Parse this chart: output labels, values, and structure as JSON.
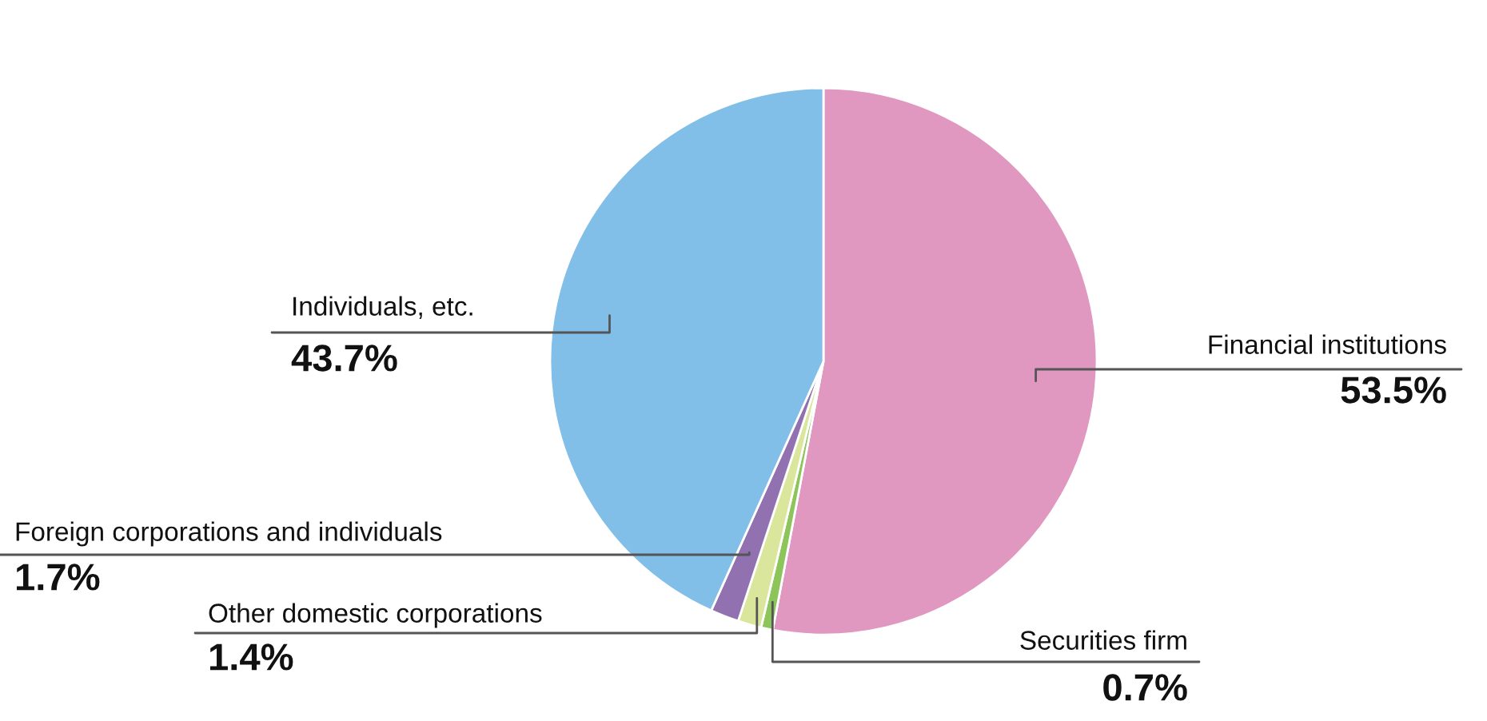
{
  "chart_data": {
    "type": "pie",
    "categories": [
      "Financial institutions",
      "Securities firm",
      "Other domestic corporations",
      "Foreign corporations and individuals",
      "Individuals, etc."
    ],
    "values": [
      53.5,
      0.7,
      1.4,
      1.7,
      43.7
    ],
    "value_labels": [
      "53.5%",
      "0.7%",
      "1.4%",
      "1.7%",
      "43.7%"
    ],
    "colors": [
      "#e098c1",
      "#8dc55b",
      "#d9e69b",
      "#9171af",
      "#81bfe9"
    ]
  }
}
